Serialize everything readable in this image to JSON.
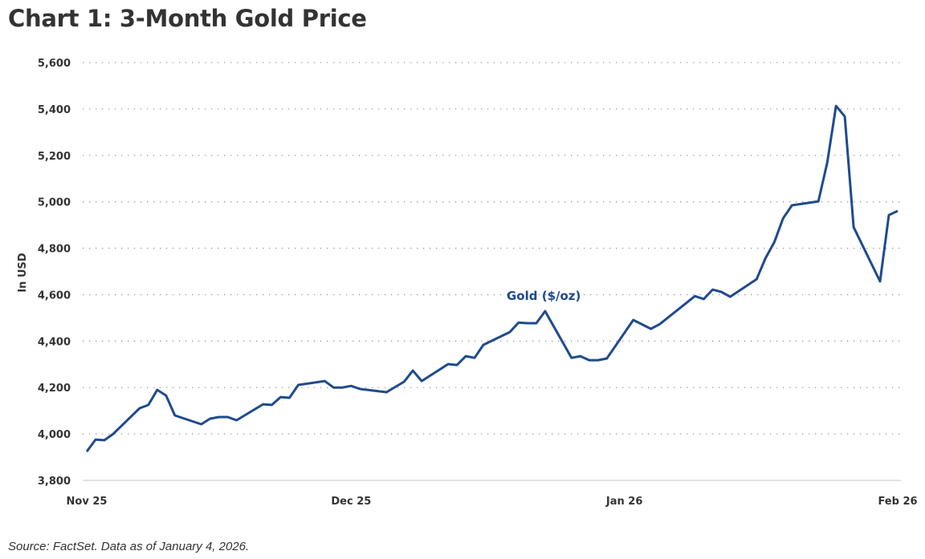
{
  "chart_data": {
    "type": "line",
    "title": "Chart 1: 3-Month Gold Price",
    "ylabel": "In USD",
    "xlabel": "",
    "ylim": [
      3800,
      5600
    ],
    "yticks": [
      3800,
      4000,
      4200,
      4400,
      4600,
      4800,
      5000,
      5200,
      5400,
      5600
    ],
    "ytick_labels": [
      "3,800",
      "4,000",
      "4,200",
      "4,400",
      "4,600",
      "4,800",
      "5,000",
      "5,200",
      "5,400",
      "5,600"
    ],
    "xlim": [
      "2025-11-01",
      "2026-02-01"
    ],
    "xticks": [
      {
        "date": "2025-11-01",
        "label": "Nov 25"
      },
      {
        "date": "2025-12-01",
        "label": "Dec 25"
      },
      {
        "date": "2026-01-01",
        "label": "Jan 26"
      },
      {
        "date": "2026-02-01",
        "label": "Feb 26"
      }
    ],
    "grid": "horizontal-dotted",
    "series_color": "#1f4a8f",
    "series": [
      {
        "name": "Gold ($/oz)",
        "points": [
          [
            "2025-11-01",
            3924
          ],
          [
            "2025-11-02",
            3976
          ],
          [
            "2025-11-03",
            3973
          ],
          [
            "2025-11-04",
            4000
          ],
          [
            "2025-11-07",
            4111
          ],
          [
            "2025-11-08",
            4125
          ],
          [
            "2025-11-09",
            4190
          ],
          [
            "2025-11-10",
            4166
          ],
          [
            "2025-11-11",
            4080
          ],
          [
            "2025-11-14",
            4042
          ],
          [
            "2025-11-15",
            4066
          ],
          [
            "2025-11-16",
            4073
          ],
          [
            "2025-11-17",
            4073
          ],
          [
            "2025-11-18",
            4059
          ],
          [
            "2025-11-21",
            4128
          ],
          [
            "2025-11-22",
            4125
          ],
          [
            "2025-11-23",
            4159
          ],
          [
            "2025-11-24",
            4156
          ],
          [
            "2025-11-25",
            4211
          ],
          [
            "2025-11-28",
            4228
          ],
          [
            "2025-11-29",
            4200
          ],
          [
            "2025-11-30",
            4200
          ],
          [
            "2025-12-01",
            4207
          ],
          [
            "2025-12-02",
            4194
          ],
          [
            "2025-12-05",
            4180
          ],
          [
            "2025-12-07",
            4225
          ],
          [
            "2025-12-08",
            4273
          ],
          [
            "2025-12-09",
            4228
          ],
          [
            "2025-12-12",
            4301
          ],
          [
            "2025-12-13",
            4297
          ],
          [
            "2025-12-14",
            4335
          ],
          [
            "2025-12-15",
            4328
          ],
          [
            "2025-12-16",
            4384
          ],
          [
            "2025-12-19",
            4439
          ],
          [
            "2025-12-20",
            4480
          ],
          [
            "2025-12-21",
            4477
          ],
          [
            "2025-12-22",
            4477
          ],
          [
            "2025-12-23",
            4529
          ],
          [
            "2025-12-26",
            4328
          ],
          [
            "2025-12-27",
            4335
          ],
          [
            "2025-12-28",
            4318
          ],
          [
            "2025-12-29",
            4318
          ],
          [
            "2025-12-30",
            4325
          ],
          [
            "2026-01-02",
            4491
          ],
          [
            "2026-01-04",
            4453
          ],
          [
            "2026-01-05",
            4473
          ],
          [
            "2026-01-09",
            4594
          ],
          [
            "2026-01-10",
            4581
          ],
          [
            "2026-01-11",
            4622
          ],
          [
            "2026-01-12",
            4612
          ],
          [
            "2026-01-13",
            4591
          ],
          [
            "2026-01-16",
            4667
          ],
          [
            "2026-01-17",
            4757
          ],
          [
            "2026-01-18",
            4826
          ],
          [
            "2026-01-19",
            4929
          ],
          [
            "2026-01-20",
            4985
          ],
          [
            "2026-01-23",
            5002
          ],
          [
            "2026-01-24",
            5168
          ],
          [
            "2026-01-25",
            5413
          ],
          [
            "2026-01-26",
            5368
          ],
          [
            "2026-01-27",
            4891
          ],
          [
            "2026-01-30",
            4657
          ],
          [
            "2026-01-31",
            4943
          ],
          [
            "2026-02-01",
            4961
          ]
        ]
      }
    ],
    "annotations": [
      "Gold ($/oz)"
    ],
    "legend": "inline-label-above-line"
  },
  "footer": {
    "source": "Source: FactSet. Data as of January 4, 2026."
  }
}
